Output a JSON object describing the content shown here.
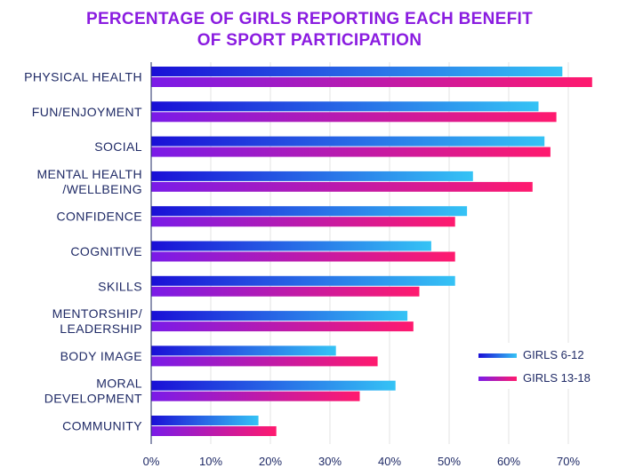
{
  "chart_data": {
    "type": "bar",
    "orientation": "horizontal",
    "title": "PERCENTAGE OF GIRLS REPORTING EACH BENEFIT OF SPORT PARTICIPATION",
    "title_lines": [
      "PERCENTAGE OF GIRLS REPORTING EACH BENEFIT",
      "OF SPORT PARTICIPATION"
    ],
    "categories": [
      [
        "PHYSICAL HEALTH"
      ],
      [
        "FUN/ENJOYMENT"
      ],
      [
        "SOCIAL"
      ],
      [
        "MENTAL HEALTH",
        "/WELLBEING"
      ],
      [
        "CONFIDENCE"
      ],
      [
        "COGNITIVE"
      ],
      [
        "SKILLS"
      ],
      [
        "MENTORSHIP/",
        "LEADERSHIP"
      ],
      [
        "BODY IMAGE"
      ],
      [
        "MORAL",
        "DEVELOPMENT"
      ],
      [
        "COMMUNITY"
      ]
    ],
    "series": [
      {
        "name": "GIRLS 6-12",
        "values": [
          69,
          65,
          66,
          54,
          53,
          47,
          51,
          43,
          31,
          41,
          18
        ],
        "color_start": "#1a0fd6",
        "color_end": "#35c3f5"
      },
      {
        "name": "GIRLS 13-18",
        "values": [
          74,
          68,
          67,
          64,
          51,
          51,
          45,
          44,
          38,
          35,
          21
        ],
        "color_start": "#7a1be8",
        "color_end": "#ff1a6e"
      }
    ],
    "xlim": [
      0,
      75
    ],
    "x_ticks": [
      0,
      10,
      20,
      30,
      40,
      50,
      60,
      70
    ],
    "x_tick_labels": [
      "0%",
      "10%",
      "20%",
      "30%",
      "40%",
      "50%",
      "60%",
      "70%"
    ],
    "grid": true,
    "legend_position": "right",
    "xlabel": "",
    "ylabel": ""
  },
  "colors": {
    "title": "#8a1ce0",
    "text": "#1f2a66",
    "grid": "#e3e3e3",
    "axis": "#1f2a66"
  }
}
